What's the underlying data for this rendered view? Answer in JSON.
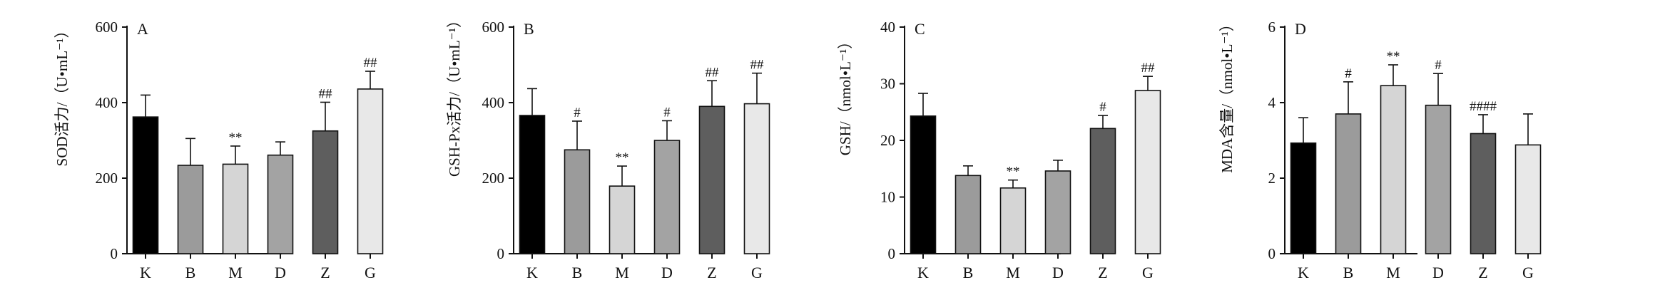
{
  "colors": {
    "bar_fills": [
      "#000000",
      "#9b9b9b",
      "#d5d5d5",
      "#a3a3a3",
      "#5e5e5e",
      "#e8e8e8"
    ],
    "outline": "#111111"
  },
  "chart_data": [
    {
      "type": "bar",
      "panel_label": "A",
      "ylabel": "SOD活力/（U•mL⁻¹）",
      "categories": [
        "K",
        "B",
        "M",
        "D",
        "Z",
        "G"
      ],
      "values": [
        362,
        234,
        237,
        261,
        325,
        436
      ],
      "errors": [
        58,
        71,
        48,
        35,
        76,
        47
      ],
      "annotations": [
        "",
        "",
        "**",
        "",
        "##",
        "##"
      ],
      "ylim": [
        0,
        600
      ],
      "yticks": [
        "0",
        "200",
        "400",
        "600"
      ],
      "grid": false
    },
    {
      "type": "bar",
      "panel_label": "B",
      "ylabel": "GSH-Px活力/（U•mL⁻¹）",
      "categories": [
        "K",
        "B",
        "M",
        "D",
        "Z",
        "G"
      ],
      "values": [
        366,
        275,
        179,
        300,
        390,
        397
      ],
      "errors": [
        71,
        76,
        53,
        52,
        68,
        81
      ],
      "annotations": [
        "",
        "#",
        "**",
        "#",
        "##",
        "##"
      ],
      "ylim": [
        0,
        600
      ],
      "yticks": [
        "0",
        "200",
        "400",
        "600"
      ],
      "grid": false
    },
    {
      "type": "bar",
      "panel_label": "C",
      "ylabel": "GSH/（nmol•L⁻¹）",
      "categories": [
        "K",
        "B",
        "M",
        "D",
        "Z",
        "G"
      ],
      "values": [
        24.3,
        13.8,
        11.6,
        14.6,
        22.1,
        28.8
      ],
      "errors": [
        4.0,
        1.7,
        1.4,
        1.9,
        2.3,
        2.5
      ],
      "annotations": [
        "",
        "",
        "**",
        "",
        "#",
        "##"
      ],
      "ylim": [
        0,
        40
      ],
      "yticks": [
        "0",
        "10",
        "20",
        "30",
        "40"
      ],
      "grid": false
    },
    {
      "type": "bar",
      "panel_label": "D",
      "ylabel": "MDA含量/（nmol•L⁻¹）",
      "categories": [
        "K",
        "B",
        "M",
        "D",
        "Z",
        "G"
      ],
      "values": [
        2.93,
        3.7,
        4.45,
        3.93,
        3.18,
        2.88
      ],
      "errors": [
        0.67,
        0.85,
        0.55,
        0.84,
        0.5,
        0.82
      ],
      "annotations": [
        "",
        "#",
        "**",
        "#",
        "####",
        ""
      ],
      "ylim": [
        0,
        6
      ],
      "yticks": [
        "0",
        "2",
        "4",
        "6"
      ],
      "grid": false
    }
  ]
}
